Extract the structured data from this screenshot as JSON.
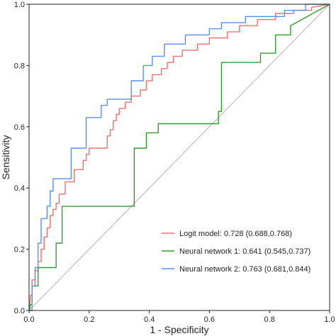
{
  "chart_data": {
    "type": "line",
    "xlabel": "1 - Specificity",
    "ylabel": "Sensitivity",
    "xlim": [
      0,
      1
    ],
    "ylim": [
      0,
      1
    ],
    "x_ticks": [
      "0.0",
      "0.2",
      "0.4",
      "0.6",
      "0.8",
      "1.0"
    ],
    "y_ticks": [
      "0.0",
      "0.2",
      "0.4",
      "0.6",
      "0.8",
      "1.0"
    ],
    "grid": false,
    "legend_position": "bottom-right",
    "reference_line": {
      "x": [
        0,
        1
      ],
      "y": [
        0,
        1
      ],
      "color": "#b3b3b3"
    },
    "series": [
      {
        "name": "Logit model: 0.728 (0.688,0.768)",
        "color": "#e8726e",
        "x": [
          0.0,
          0.005,
          0.01,
          0.01,
          0.02,
          0.02,
          0.03,
          0.03,
          0.04,
          0.04,
          0.05,
          0.05,
          0.06,
          0.06,
          0.07,
          0.07,
          0.08,
          0.08,
          0.09,
          0.09,
          0.1,
          0.1,
          0.12,
          0.12,
          0.15,
          0.15,
          0.18,
          0.18,
          0.19,
          0.19,
          0.2,
          0.2,
          0.26,
          0.26,
          0.27,
          0.27,
          0.28,
          0.28,
          0.29,
          0.29,
          0.3,
          0.3,
          0.32,
          0.32,
          0.34,
          0.34,
          0.37,
          0.37,
          0.39,
          0.39,
          0.41,
          0.41,
          0.44,
          0.44,
          0.46,
          0.46,
          0.48,
          0.48,
          0.51,
          0.51,
          0.56,
          0.56,
          0.6,
          0.6,
          0.66,
          0.66,
          0.7,
          0.7,
          0.76,
          0.76,
          0.82,
          0.82,
          0.88,
          0.88,
          0.94,
          0.94,
          1.0
        ],
        "y": [
          0.0,
          0.05,
          0.05,
          0.1,
          0.1,
          0.13,
          0.13,
          0.16,
          0.16,
          0.2,
          0.2,
          0.24,
          0.24,
          0.27,
          0.27,
          0.31,
          0.31,
          0.33,
          0.33,
          0.35,
          0.35,
          0.38,
          0.38,
          0.42,
          0.42,
          0.46,
          0.46,
          0.49,
          0.49,
          0.51,
          0.51,
          0.53,
          0.53,
          0.57,
          0.57,
          0.59,
          0.59,
          0.62,
          0.62,
          0.64,
          0.64,
          0.66,
          0.66,
          0.68,
          0.68,
          0.7,
          0.7,
          0.72,
          0.72,
          0.75,
          0.75,
          0.77,
          0.77,
          0.79,
          0.79,
          0.81,
          0.81,
          0.83,
          0.83,
          0.85,
          0.85,
          0.87,
          0.87,
          0.89,
          0.89,
          0.91,
          0.91,
          0.93,
          0.93,
          0.95,
          0.95,
          0.97,
          0.97,
          0.98,
          0.98,
          0.99,
          1.0
        ]
      },
      {
        "name": "Neural network 1: 0.641 (0.545,0.737)",
        "color": "#2ca02c",
        "x": [
          0.0,
          0.005,
          0.01,
          0.01,
          0.03,
          0.03,
          0.09,
          0.09,
          0.11,
          0.11,
          0.35,
          0.35,
          0.39,
          0.39,
          0.43,
          0.43,
          0.63,
          0.63,
          0.64,
          0.64,
          0.77,
          0.77,
          0.82,
          0.82,
          0.87,
          0.87,
          1.0
        ],
        "y": [
          0.0,
          0.02,
          0.02,
          0.08,
          0.08,
          0.14,
          0.14,
          0.22,
          0.22,
          0.34,
          0.34,
          0.53,
          0.53,
          0.58,
          0.58,
          0.61,
          0.61,
          0.65,
          0.65,
          0.81,
          0.81,
          0.84,
          0.84,
          0.9,
          0.9,
          0.93,
          1.0
        ]
      },
      {
        "name": "Neural network 2: 0.763 (0.681,0.844)",
        "color": "#5b8fe8",
        "x": [
          0.0,
          0.01,
          0.01,
          0.02,
          0.02,
          0.03,
          0.03,
          0.04,
          0.04,
          0.06,
          0.06,
          0.07,
          0.07,
          0.08,
          0.08,
          0.14,
          0.14,
          0.19,
          0.19,
          0.24,
          0.24,
          0.26,
          0.26,
          0.34,
          0.34,
          0.38,
          0.38,
          0.41,
          0.41,
          0.45,
          0.45,
          0.52,
          0.52,
          0.6,
          0.6,
          0.64,
          0.64,
          0.72,
          0.72,
          0.85,
          0.85,
          0.92,
          0.92,
          1.0
        ],
        "y": [
          0.0,
          0.0,
          0.08,
          0.08,
          0.14,
          0.14,
          0.22,
          0.22,
          0.3,
          0.3,
          0.34,
          0.34,
          0.39,
          0.39,
          0.43,
          0.43,
          0.53,
          0.53,
          0.63,
          0.63,
          0.67,
          0.67,
          0.69,
          0.69,
          0.75,
          0.75,
          0.8,
          0.8,
          0.83,
          0.83,
          0.87,
          0.87,
          0.9,
          0.9,
          0.92,
          0.92,
          0.94,
          0.94,
          0.96,
          0.96,
          0.98,
          0.98,
          1.0,
          1.0
        ]
      }
    ]
  }
}
